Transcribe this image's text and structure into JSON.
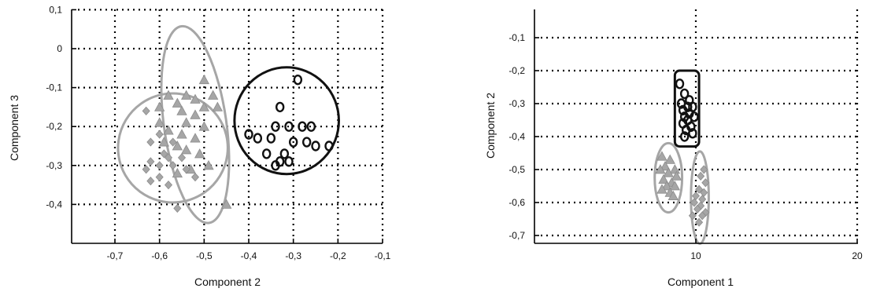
{
  "colors": {
    "black_group": "#111111",
    "gray_group": "#a6a6a6",
    "axis": "#000000",
    "grid": "#000000"
  },
  "chart_data": [
    {
      "type": "scatter",
      "title": "",
      "xlabel": "Component 2",
      "ylabel": "Component 3",
      "xlim": [
        -0.8,
        -0.1
      ],
      "ylim": [
        -0.5,
        0.1
      ],
      "xticks": [
        "-0,7",
        "-0,6",
        "-0,5",
        "-0,4",
        "-0,3",
        "-0,2",
        "-0,1"
      ],
      "yticks": [
        "0,1",
        "0",
        "-0,1",
        "-0,2",
        "-0,3",
        "-0,4"
      ],
      "grid": true,
      "series": [
        {
          "marker": "circle-open",
          "color": "#111111",
          "points": [
            [
              -0.29,
              -0.08
            ],
            [
              -0.33,
              -0.15
            ],
            [
              -0.34,
              -0.2
            ],
            [
              -0.31,
              -0.2
            ],
            [
              -0.28,
              -0.2
            ],
            [
              -0.26,
              -0.2
            ],
            [
              -0.4,
              -0.22
            ],
            [
              -0.38,
              -0.23
            ],
            [
              -0.35,
              -0.23
            ],
            [
              -0.3,
              -0.24
            ],
            [
              -0.27,
              -0.24
            ],
            [
              -0.25,
              -0.25
            ],
            [
              -0.22,
              -0.25
            ],
            [
              -0.36,
              -0.27
            ],
            [
              -0.32,
              -0.27
            ],
            [
              -0.33,
              -0.29
            ],
            [
              -0.31,
              -0.29
            ],
            [
              -0.34,
              -0.3
            ]
          ]
        },
        {
          "marker": "triangle",
          "color": "#a6a6a6",
          "points": [
            [
              -0.5,
              -0.08
            ],
            [
              -0.48,
              -0.12
            ],
            [
              -0.58,
              -0.12
            ],
            [
              -0.54,
              -0.12
            ],
            [
              -0.52,
              -0.13
            ],
            [
              -0.56,
              -0.14
            ],
            [
              -0.5,
              -0.15
            ],
            [
              -0.6,
              -0.15
            ],
            [
              -0.47,
              -0.15
            ],
            [
              -0.55,
              -0.16
            ],
            [
              -0.52,
              -0.17
            ],
            [
              -0.6,
              -0.19
            ],
            [
              -0.54,
              -0.19
            ],
            [
              -0.5,
              -0.2
            ],
            [
              -0.58,
              -0.21
            ],
            [
              -0.55,
              -0.22
            ],
            [
              -0.52,
              -0.23
            ],
            [
              -0.59,
              -0.24
            ],
            [
              -0.56,
              -0.25
            ],
            [
              -0.54,
              -0.26
            ],
            [
              -0.51,
              -0.27
            ],
            [
              -0.49,
              -0.3
            ],
            [
              -0.53,
              -0.31
            ],
            [
              -0.45,
              -0.4
            ],
            [
              -0.56,
              -0.32
            ]
          ]
        },
        {
          "marker": "diamond",
          "color": "#a6a6a6",
          "points": [
            [
              -0.63,
              -0.16
            ],
            [
              -0.6,
              -0.22
            ],
            [
              -0.62,
              -0.24
            ],
            [
              -0.57,
              -0.24
            ],
            [
              -0.59,
              -0.27
            ],
            [
              -0.55,
              -0.28
            ],
            [
              -0.58,
              -0.28
            ],
            [
              -0.62,
              -0.29
            ],
            [
              -0.6,
              -0.3
            ],
            [
              -0.57,
              -0.3
            ],
            [
              -0.63,
              -0.31
            ],
            [
              -0.54,
              -0.31
            ],
            [
              -0.6,
              -0.33
            ],
            [
              -0.52,
              -0.33
            ],
            [
              -0.62,
              -0.34
            ],
            [
              -0.58,
              -0.35
            ],
            [
              -0.56,
              -0.41
            ]
          ]
        }
      ]
    },
    {
      "type": "scatter",
      "title": "",
      "xlabel": "Component 1",
      "ylabel": "Component 2",
      "xlim": [
        0,
        20
      ],
      "ylim": [
        -0.8,
        -0.1
      ],
      "xticks": [
        "10",
        "20"
      ],
      "yticks": [
        "-0,1",
        "-0,2",
        "-0,3",
        "-0,4",
        "-0,5",
        "-0,6",
        "-0,7"
      ],
      "grid": true,
      "series": [
        {
          "marker": "circle-open",
          "color": "#111111",
          "points": [
            [
              9.0,
              -0.24
            ],
            [
              9.3,
              -0.27
            ],
            [
              9.6,
              -0.29
            ],
            [
              9.1,
              -0.3
            ],
            [
              9.5,
              -0.31
            ],
            [
              9.8,
              -0.31
            ],
            [
              9.2,
              -0.32
            ],
            [
              9.6,
              -0.33
            ],
            [
              9.3,
              -0.34
            ],
            [
              9.9,
              -0.34
            ],
            [
              9.5,
              -0.35
            ],
            [
              9.2,
              -0.36
            ],
            [
              9.7,
              -0.37
            ],
            [
              9.4,
              -0.38
            ],
            [
              9.8,
              -0.39
            ],
            [
              9.3,
              -0.4
            ]
          ]
        },
        {
          "marker": "triangle",
          "color": "#a6a6a6",
          "points": [
            [
              7.9,
              -0.46
            ],
            [
              8.4,
              -0.47
            ],
            [
              8.1,
              -0.49
            ],
            [
              8.7,
              -0.5
            ],
            [
              7.8,
              -0.5
            ],
            [
              8.3,
              -0.51
            ],
            [
              8.8,
              -0.52
            ],
            [
              8.0,
              -0.53
            ],
            [
              8.5,
              -0.54
            ],
            [
              8.2,
              -0.55
            ],
            [
              8.7,
              -0.55
            ],
            [
              7.9,
              -0.56
            ],
            [
              8.4,
              -0.57
            ],
            [
              8.6,
              -0.58
            ]
          ]
        },
        {
          "marker": "diamond",
          "color": "#a6a6a6",
          "points": [
            [
              10.5,
              -0.5
            ],
            [
              10.3,
              -0.52
            ],
            [
              10.6,
              -0.54
            ],
            [
              10.2,
              -0.56
            ],
            [
              10.5,
              -0.57
            ],
            [
              10.0,
              -0.58
            ],
            [
              10.4,
              -0.59
            ],
            [
              9.9,
              -0.6
            ],
            [
              10.3,
              -0.61
            ],
            [
              10.1,
              -0.62
            ],
            [
              10.6,
              -0.63
            ],
            [
              9.8,
              -0.64
            ],
            [
              10.4,
              -0.64
            ],
            [
              10.2,
              -0.66
            ]
          ]
        }
      ]
    }
  ]
}
